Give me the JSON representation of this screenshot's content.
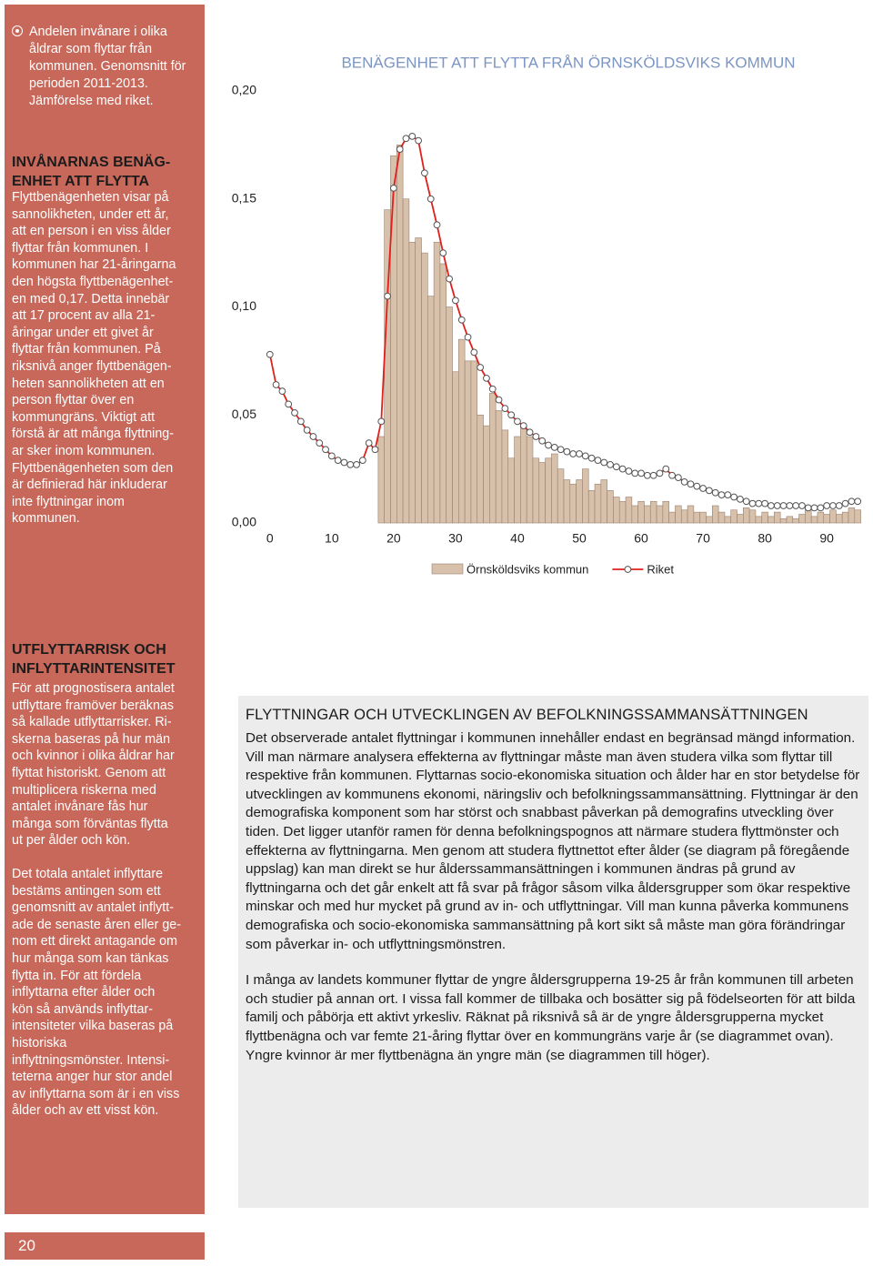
{
  "sidebar": {
    "note": {
      "lines": [
        "Andelen invånare i olika",
        "åldrar som flyttar från",
        "kommunen. Genomsnitt för",
        "perioden 2011-2013.",
        "Jämförelse med riket."
      ]
    },
    "section1": {
      "heading": [
        "INVÅNARNAS BENÄG-",
        "ENHET ATT FLYTTA"
      ],
      "lines": [
        "Flyttbenägenheten visar på",
        "sannolikheten, under ett år,",
        "att en person i en viss ålder",
        "flyttar från kommunen. I",
        "kommunen har 21-åringarna",
        "den högsta flyttbenägenhet-",
        "en med 0,17. Detta innebär",
        "att 17 procent av alla 21-",
        "åringar under ett givet år",
        "flyttar från kommunen. På",
        "riksnivå anger flyttbenägen-",
        "heten sannolikheten att en",
        "person flyttar över en",
        "kommungräns. Viktigt att",
        "förstå är att många flyttning-",
        "ar sker inom kommunen.",
        "Flyttbenägenheten som den",
        "är definierad här inkluderar",
        "inte flyttningar inom",
        "kommunen."
      ]
    },
    "section2": {
      "heading": [
        "UTFLYTTARRISK OCH",
        "INFLYTTARINTENSITET"
      ],
      "paragraph1": [
        "För att prognostisera antalet",
        "utflyttare framöver beräknas",
        "så kallade utflyttarrisker. Ri-",
        "skerna baseras på hur män",
        "och kvinnor i olika åldrar har",
        "flyttat historiskt. Genom att",
        "multiplicera riskerna med",
        "antalet invånare fås hur",
        "många som förväntas flytta",
        "ut per ålder och kön."
      ],
      "paragraph2": [
        "Det totala antalet inflyttare",
        "bestäms antingen som ett",
        "genomsnitt av antalet inflytt-",
        "ade de senaste åren eller ge-",
        "nom ett direkt antagande om",
        "hur många som kan tänkas",
        "flytta in. För att fördela",
        "inflyttarna efter ålder och",
        "kön så används inflyttar-",
        "intensiteter vilka baseras på",
        "historiska",
        "inflyttningsmönster. Intensi-",
        "teterna anger hur stor andel",
        "av inflyttarna som är i en viss",
        "ålder och av ett visst kön."
      ]
    }
  },
  "page_number": "20",
  "chart_data": {
    "type": "combo",
    "title": "BENÄGENHET ATT FLYTTA FRÅN ÖRNSKÖLDSVIKS KOMMUN",
    "x": [
      0,
      1,
      2,
      3,
      4,
      5,
      6,
      7,
      8,
      9,
      10,
      11,
      12,
      13,
      14,
      15,
      16,
      17,
      18,
      19,
      20,
      21,
      22,
      23,
      24,
      25,
      26,
      27,
      28,
      29,
      30,
      31,
      32,
      33,
      34,
      35,
      36,
      37,
      38,
      39,
      40,
      41,
      42,
      43,
      44,
      45,
      46,
      47,
      48,
      49,
      50,
      51,
      52,
      53,
      54,
      55,
      56,
      57,
      58,
      59,
      60,
      61,
      62,
      63,
      64,
      65,
      66,
      67,
      68,
      69,
      70,
      71,
      72,
      73,
      74,
      75,
      76,
      77,
      78,
      79,
      80,
      81,
      82,
      83,
      84,
      85,
      86,
      87,
      88,
      89,
      90,
      91,
      92,
      93,
      94,
      95
    ],
    "xlim": [
      -1,
      96
    ],
    "xticks": [
      0,
      10,
      20,
      30,
      40,
      50,
      60,
      70,
      80,
      90
    ],
    "ylim": [
      0,
      0.2
    ],
    "yticks": [
      {
        "value": 0,
        "label": "0,00"
      },
      {
        "value": 0.05,
        "label": "0,05"
      },
      {
        "value": 0.1,
        "label": "0,10"
      },
      {
        "value": 0.15,
        "label": "0,15"
      },
      {
        "value": 0.2,
        "label": "0,20"
      }
    ],
    "grid": false,
    "series": [
      {
        "name": "Örnsköldsviks kommun",
        "type": "bar",
        "color": "#d8c1ab",
        "values": [
          null,
          null,
          null,
          null,
          null,
          null,
          null,
          null,
          null,
          null,
          null,
          null,
          null,
          null,
          null,
          null,
          null,
          null,
          0.04,
          0.145,
          0.17,
          0.175,
          0.15,
          0.13,
          0.132,
          0.125,
          0.105,
          0.13,
          0.12,
          0.1,
          0.07,
          0.085,
          0.075,
          0.075,
          0.05,
          0.045,
          0.06,
          0.052,
          0.043,
          0.03,
          0.04,
          0.045,
          0.04,
          0.03,
          0.028,
          0.03,
          0.032,
          0.025,
          0.02,
          0.018,
          0.02,
          0.025,
          0.015,
          0.018,
          0.02,
          0.015,
          0.012,
          0.01,
          0.012,
          0.008,
          0.01,
          0.008,
          0.01,
          0.008,
          0.01,
          0.005,
          0.008,
          0.006,
          0.008,
          0.005,
          0.005,
          0.003,
          0.008,
          0.005,
          0.003,
          0.006,
          0.004,
          0.007,
          0.006,
          0.003,
          0.005,
          0.003,
          0.005,
          0.002,
          0.003,
          0.002,
          0.004,
          0.006,
          0.003,
          0.005,
          0.004,
          0.006,
          0.004,
          0.005,
          0.007,
          0.006
        ]
      },
      {
        "name": "Riket",
        "type": "line",
        "color": "#e0201c",
        "values": [
          0.078,
          0.064,
          0.061,
          0.055,
          0.051,
          0.047,
          0.043,
          0.04,
          0.037,
          0.034,
          0.031,
          0.029,
          0.028,
          0.027,
          0.027,
          0.029,
          0.037,
          0.034,
          0.047,
          0.105,
          0.155,
          0.173,
          0.178,
          0.179,
          0.177,
          0.162,
          0.15,
          0.138,
          0.125,
          0.113,
          0.103,
          0.094,
          0.086,
          0.079,
          0.072,
          0.067,
          0.062,
          0.057,
          0.053,
          0.05,
          0.047,
          0.045,
          0.042,
          0.04,
          0.038,
          0.036,
          0.035,
          0.034,
          0.033,
          0.032,
          0.032,
          0.031,
          0.03,
          0.029,
          0.028,
          0.027,
          0.026,
          0.025,
          0.024,
          0.023,
          0.023,
          0.022,
          0.022,
          0.023,
          0.025,
          0.022,
          0.021,
          0.019,
          0.018,
          0.017,
          0.016,
          0.015,
          0.014,
          0.013,
          0.013,
          0.012,
          0.011,
          0.01,
          0.009,
          0.009,
          0.009,
          0.008,
          0.008,
          0.008,
          0.008,
          0.008,
          0.008,
          0.007,
          0.007,
          0.007,
          0.008,
          0.008,
          0.008,
          0.009,
          0.01,
          0.01
        ]
      }
    ]
  },
  "article": {
    "heading": "FLYTTNINGAR OCH UTVECKLINGEN AV BEFOLKNINGSSAMMANSÄTTNINGEN",
    "paragraphs": [
      "Det observerade antalet flyttningar i kommunen innehåller endast en begränsad mängd information. Vill man närmare analysera effekterna av flyttningar måste man även studera vilka som flyttar till respektive från kommunen. Flyttarnas socio-ekonomiska situation och ålder har en stor betydelse för utvecklingen av kommunens ekonomi, näringsliv och befolkningssammansättning. Flyttningar är den demografiska komponent som har störst och snabbast påverkan på demografins utveckling över tiden. Det ligger utanför ramen för denna befolkningspognos att närmare studera flyttmönster och effekterna av flyttningarna. Men genom att studera flyttnettot efter ålder (se diagram på föregående uppslag) kan man direkt se hur ålderssammansättningen i kommunen ändras på grund av flyttningarna och det går enkelt att få svar på frågor såsom vilka åldersgrupper som ökar respektive minskar och med hur mycket på grund av in- och utflyttningar. Vill man kunna påverka kommunens demografiska och socio-ekonomiska sammansättning på kort sikt så måste man göra förändringar som påverkar in- och utflyttningsmönstren.",
      "I många av landets kommuner flyttar de yngre åldersgrupperna 19-25 år från kommunen till arbeten och studier på annan ort. I vissa fall kommer de tillbaka och bosätter sig på födelseorten för att bilda familj och påbörja ett aktivt yrkesliv. Räknat på riksnivå så är de yngre åldersgrupperna mycket flyttbenägna och var femte 21-åring flyttar över en kommungräns varje år (se diagrammet ovan). Yngre kvinnor är mer flyttbenägna än yngre män (se diagrammen till höger)."
    ]
  }
}
